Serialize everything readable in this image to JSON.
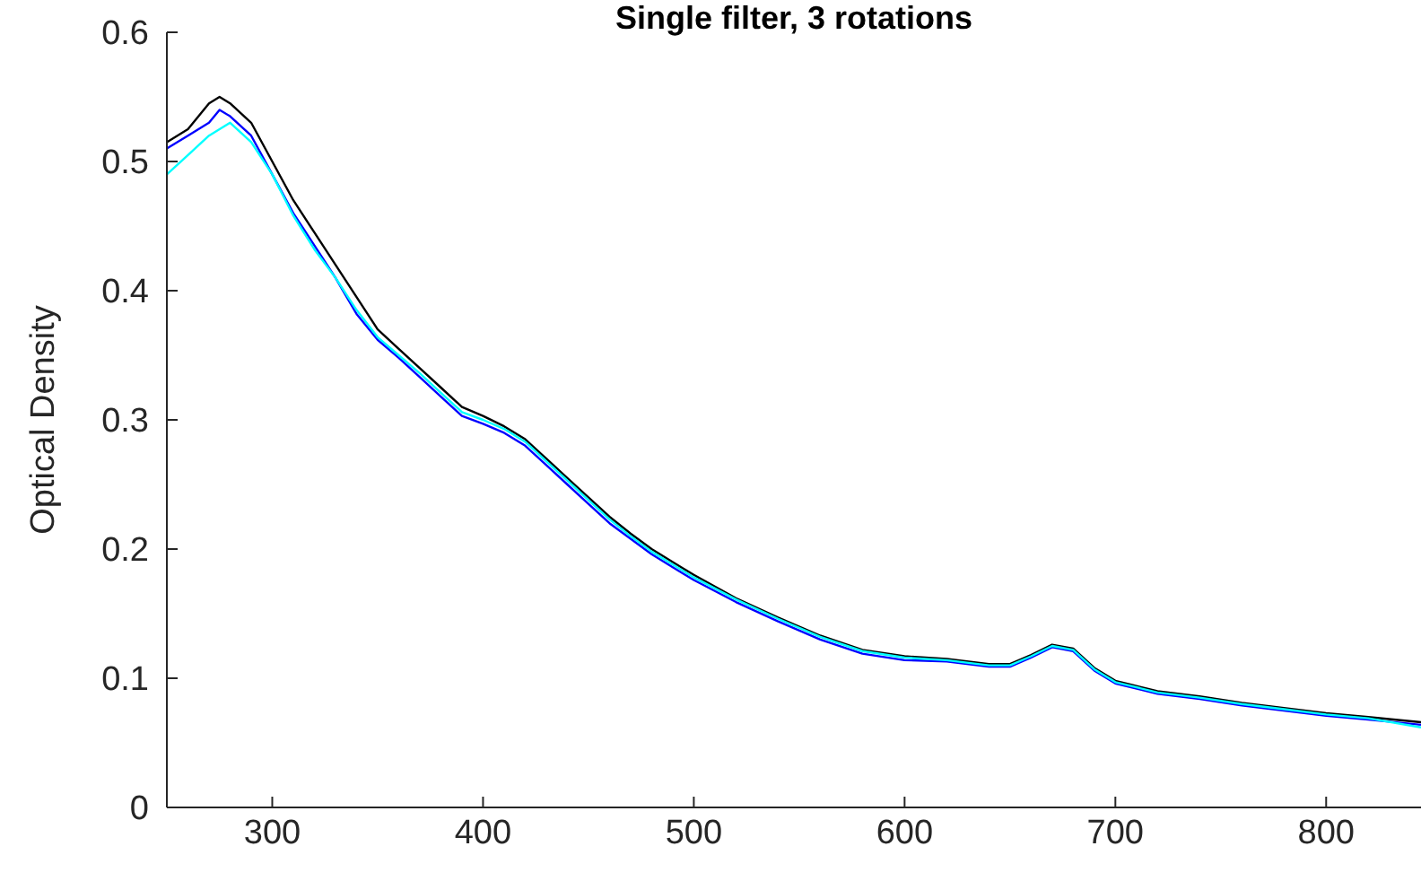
{
  "chart_data": {
    "type": "line",
    "title": "Single filter, 3 rotations",
    "ylabel": "Optical Density",
    "xlim": [
      250,
      845
    ],
    "xticks": [
      300,
      400,
      500,
      600,
      700,
      800
    ],
    "ylim": [
      0,
      0.6
    ],
    "yticks": [
      0,
      0.1,
      0.2,
      0.3,
      0.4,
      0.5,
      0.6
    ],
    "grid": false,
    "marker": "none",
    "line_style": "solid",
    "x": [
      250,
      260,
      270,
      275,
      280,
      290,
      300,
      310,
      320,
      330,
      340,
      350,
      360,
      370,
      380,
      390,
      400,
      410,
      420,
      430,
      440,
      450,
      460,
      470,
      480,
      490,
      500,
      520,
      540,
      560,
      580,
      600,
      620,
      640,
      650,
      660,
      670,
      680,
      690,
      700,
      720,
      740,
      760,
      780,
      800,
      820,
      845
    ],
    "series": [
      {
        "color": "#000000",
        "values": [
          0.515,
          0.525,
          0.545,
          0.55,
          0.545,
          0.53,
          0.5,
          0.47,
          0.445,
          0.42,
          0.395,
          0.37,
          0.355,
          0.34,
          0.325,
          0.31,
          0.303,
          0.295,
          0.285,
          0.27,
          0.255,
          0.24,
          0.225,
          0.212,
          0.2,
          0.19,
          0.18,
          0.162,
          0.147,
          0.133,
          0.122,
          0.117,
          0.115,
          0.111,
          0.111,
          0.118,
          0.126,
          0.123,
          0.108,
          0.098,
          0.09,
          0.086,
          0.081,
          0.077,
          0.073,
          0.07,
          0.066
        ]
      },
      {
        "color": "#0000ff",
        "values": [
          0.51,
          0.52,
          0.53,
          0.54,
          0.535,
          0.52,
          0.49,
          0.46,
          0.435,
          0.41,
          0.382,
          0.362,
          0.348,
          0.333,
          0.318,
          0.303,
          0.297,
          0.29,
          0.28,
          0.265,
          0.25,
          0.235,
          0.22,
          0.208,
          0.196,
          0.186,
          0.176,
          0.159,
          0.144,
          0.13,
          0.119,
          0.114,
          0.113,
          0.109,
          0.109,
          0.116,
          0.124,
          0.121,
          0.106,
          0.096,
          0.088,
          0.084,
          0.079,
          0.075,
          0.071,
          0.068,
          0.064
        ]
      },
      {
        "color": "#00ffff",
        "values": [
          0.49,
          0.505,
          0.52,
          0.525,
          0.53,
          0.515,
          0.49,
          0.458,
          0.432,
          0.41,
          0.385,
          0.364,
          0.35,
          0.336,
          0.321,
          0.306,
          0.3,
          0.293,
          0.283,
          0.268,
          0.253,
          0.238,
          0.223,
          0.21,
          0.198,
          0.188,
          0.178,
          0.161,
          0.146,
          0.132,
          0.121,
          0.116,
          0.114,
          0.11,
          0.11,
          0.117,
          0.125,
          0.122,
          0.107,
          0.097,
          0.089,
          0.085,
          0.08,
          0.076,
          0.072,
          0.069,
          0.062
        ]
      }
    ]
  }
}
